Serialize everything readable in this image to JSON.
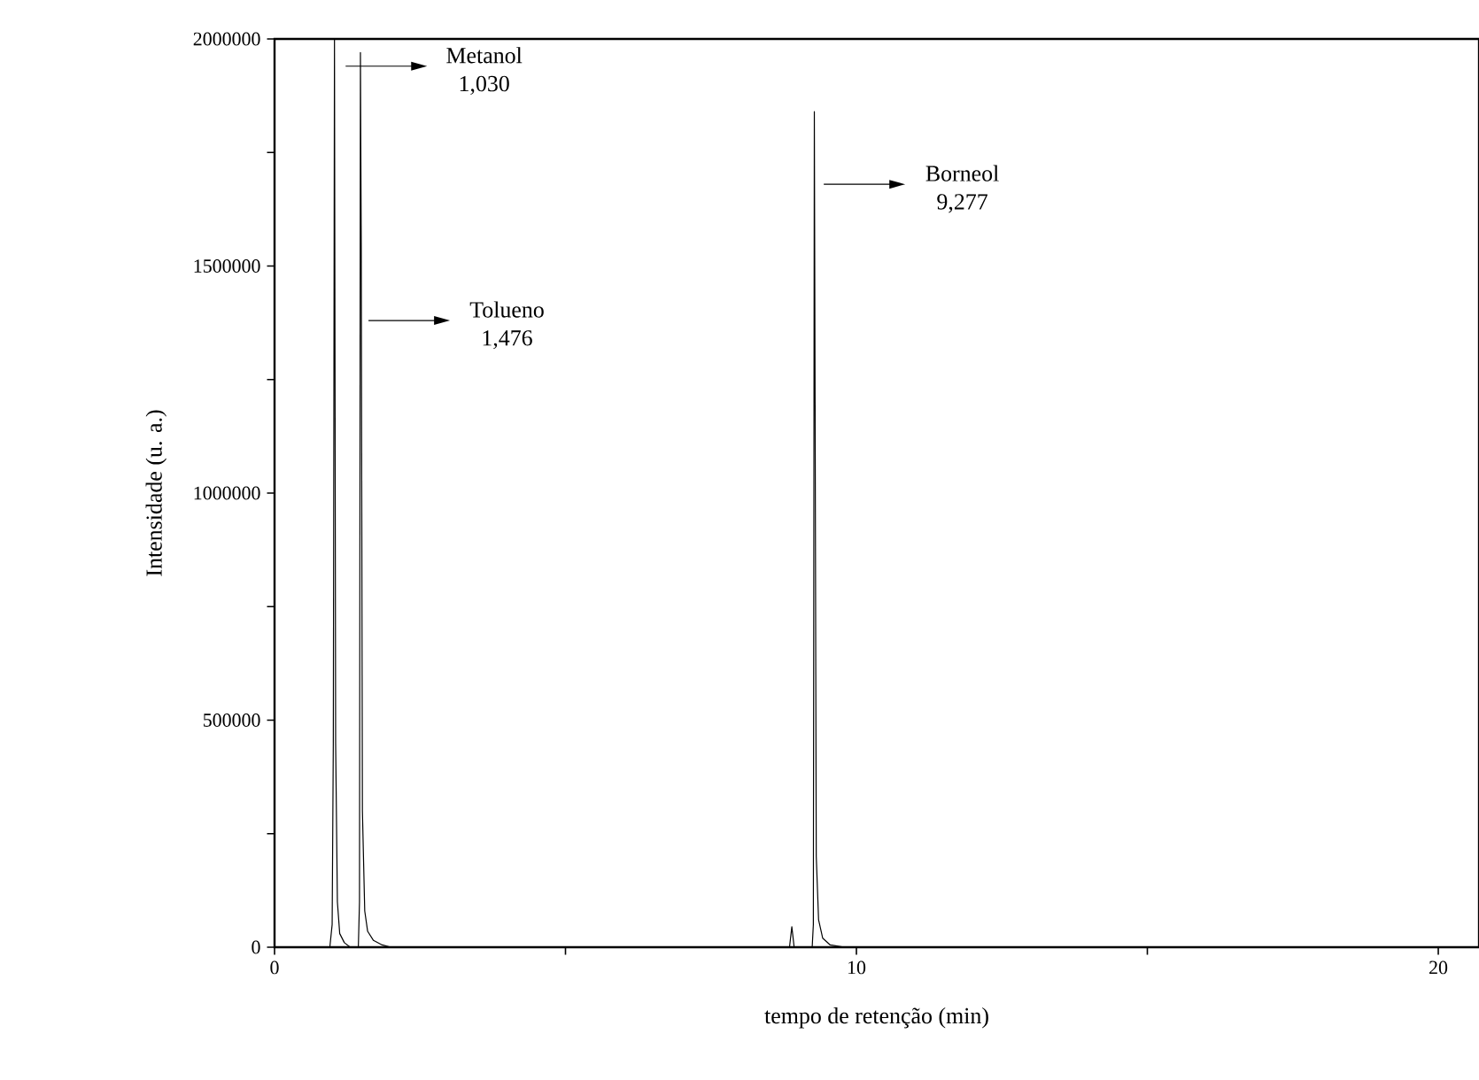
{
  "chart_data": {
    "type": "line",
    "xlabel": "tempo de retenção (min)",
    "ylabel": "Intensidade (u. a.)",
    "xlim": [
      0,
      20.7
    ],
    "ylim": [
      0,
      2000000
    ],
    "xticks": [
      0,
      {
        "value": 5,
        "label": null
      },
      10,
      {
        "value": 15,
        "label": null
      },
      20
    ],
    "yticks": [
      0,
      {
        "value": 250000,
        "label": null
      },
      500000,
      {
        "value": 750000,
        "label": null
      },
      1000000,
      {
        "value": 1250000,
        "label": null
      },
      1500000,
      {
        "value": 1750000,
        "label": null
      },
      2000000
    ],
    "series": [
      {
        "color": "#000000",
        "x": [
          0,
          0.95,
          0.99,
          1.01,
          1.03,
          1.05,
          1.08,
          1.12,
          1.2,
          1.3,
          1.44,
          1.46,
          1.476,
          1.49,
          1.51,
          1.55,
          1.6,
          1.7,
          1.85,
          2.0,
          8.85,
          8.89,
          8.93,
          9.24,
          9.26,
          9.277,
          9.29,
          9.31,
          9.35,
          9.42,
          9.55,
          9.8,
          20.7
        ],
        "values": [
          0,
          0,
          50000,
          450000,
          2000000,
          450000,
          100000,
          30000,
          10000,
          0,
          0,
          100000,
          1970000,
          1540000,
          300000,
          80000,
          35000,
          15000,
          5000,
          0,
          0,
          45000,
          0,
          0,
          50000,
          1840000,
          1200000,
          200000,
          60000,
          20000,
          5000,
          0,
          0
        ]
      }
    ],
    "annotations": [
      "Metanol 1,030",
      "Tolueno 1,476",
      "Borneol 9,277"
    ]
  }
}
